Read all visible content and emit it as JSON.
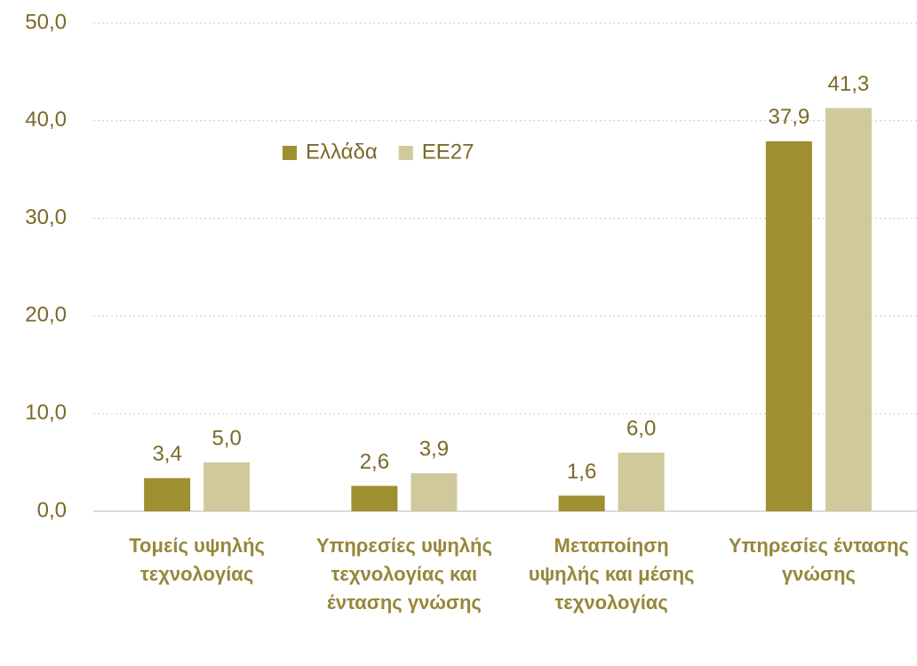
{
  "chart_data": {
    "type": "bar",
    "categories": [
      "Τομείς υψηλής τεχνολογίας",
      "Υπηρεσίες υψηλής τεχνολογίας και έντασης γνώσης",
      "Μεταποίηση υψηλής και μέσης τεχνολογίας",
      "Υπηρεσίες έντασης γνώσης"
    ],
    "series": [
      {
        "name": "Ελλάδα",
        "color": "#9e8f30",
        "values": [
          3.4,
          2.6,
          1.6,
          37.9
        ],
        "value_labels": [
          "3,4",
          "2,6",
          "1,6",
          "37,9"
        ]
      },
      {
        "name": "ΕΕ27",
        "color": "#cfc99b",
        "values": [
          5.0,
          3.9,
          6.0,
          41.3
        ],
        "value_labels": [
          "5,0",
          "3,9",
          "6,0",
          "41,3"
        ]
      }
    ],
    "ylim": [
      0,
      50
    ],
    "yticks": [
      {
        "value": 0,
        "label": "0,0"
      },
      {
        "value": 10,
        "label": "10,0"
      },
      {
        "value": 20,
        "label": "20,0"
      },
      {
        "value": 30,
        "label": "30,0"
      },
      {
        "value": 40,
        "label": "40,0"
      },
      {
        "value": 50,
        "label": "50,0"
      }
    ],
    "grid": true,
    "legend": "top-center"
  }
}
